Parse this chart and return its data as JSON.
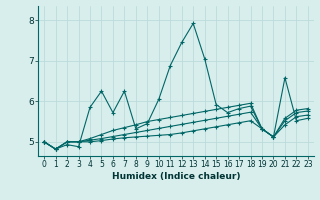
{
  "title": "",
  "xlabel": "Humidex (Indice chaleur)",
  "ylabel": "",
  "xlim": [
    -0.5,
    23.5
  ],
  "ylim": [
    4.65,
    8.35
  ],
  "yticks": [
    5,
    6,
    7,
    8
  ],
  "xticks": [
    0,
    1,
    2,
    3,
    4,
    5,
    6,
    7,
    8,
    9,
    10,
    11,
    12,
    13,
    14,
    15,
    16,
    17,
    18,
    19,
    20,
    21,
    22,
    23
  ],
  "background_color": "#d8eeed",
  "grid_color": "#b8d8d8",
  "line_color": "#006666",
  "lines": [
    [
      5.0,
      4.82,
      4.93,
      4.88,
      5.85,
      6.25,
      5.72,
      6.25,
      5.32,
      5.45,
      6.05,
      6.88,
      7.45,
      7.92,
      7.05,
      5.92,
      5.72,
      5.82,
      5.88,
      5.32,
      5.12,
      6.58,
      5.52,
      5.58
    ],
    [
      5.0,
      4.82,
      5.0,
      5.0,
      5.08,
      5.18,
      5.28,
      5.35,
      5.42,
      5.5,
      5.55,
      5.6,
      5.65,
      5.7,
      5.75,
      5.8,
      5.85,
      5.9,
      5.95,
      5.32,
      5.12,
      5.58,
      5.78,
      5.82
    ],
    [
      5.0,
      4.82,
      5.0,
      5.0,
      5.04,
      5.08,
      5.13,
      5.18,
      5.23,
      5.28,
      5.33,
      5.38,
      5.43,
      5.48,
      5.53,
      5.58,
      5.63,
      5.68,
      5.73,
      5.32,
      5.12,
      5.52,
      5.72,
      5.76
    ],
    [
      5.0,
      4.82,
      5.0,
      5.0,
      5.0,
      5.03,
      5.07,
      5.1,
      5.12,
      5.14,
      5.16,
      5.18,
      5.22,
      5.27,
      5.32,
      5.37,
      5.42,
      5.47,
      5.52,
      5.32,
      5.12,
      5.42,
      5.62,
      5.66
    ]
  ]
}
